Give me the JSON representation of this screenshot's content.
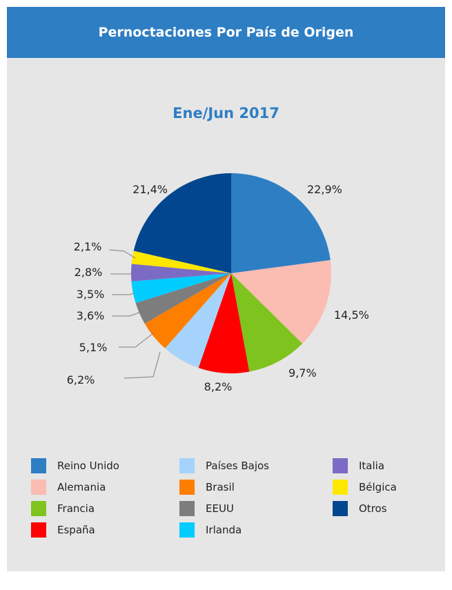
{
  "header": {
    "title": "Pernoctaciones Por País de Origen"
  },
  "chart_data": {
    "type": "pie",
    "title": "Ene/Jun 2017",
    "slices": [
      {
        "name": "Reino Unido",
        "value": 22.9,
        "label": "22,9%",
        "color": "#2e7ec4"
      },
      {
        "name": "Alemania",
        "value": 14.5,
        "label": "14,5%",
        "color": "#fbbcb2"
      },
      {
        "name": "Francia",
        "value": 9.7,
        "label": "9,7%",
        "color": "#7fc41e"
      },
      {
        "name": "España",
        "value": 8.2,
        "label": "8,2%",
        "color": "#fe0000"
      },
      {
        "name": "Países Bajos",
        "value": 6.2,
        "label": "6,2%",
        "color": "#a6d3fb"
      },
      {
        "name": "Brasil",
        "value": 5.1,
        "label": "5,1%",
        "color": "#fe7e00"
      },
      {
        "name": "EEUU",
        "value": 3.6,
        "label": "3,6%",
        "color": "#7d7d7d"
      },
      {
        "name": "Irlanda",
        "value": 3.5,
        "label": "3,5%",
        "color": "#00ccff"
      },
      {
        "name": "Italia",
        "value": 2.8,
        "label": "2,8%",
        "color": "#7c6bc4"
      },
      {
        "name": "Bélgica",
        "value": 2.1,
        "label": "2,1%",
        "color": "#ffe800"
      },
      {
        "name": "Otros",
        "value": 21.4,
        "label": "21,4%",
        "color": "#01468e"
      }
    ],
    "legend_placement": "bottom"
  }
}
